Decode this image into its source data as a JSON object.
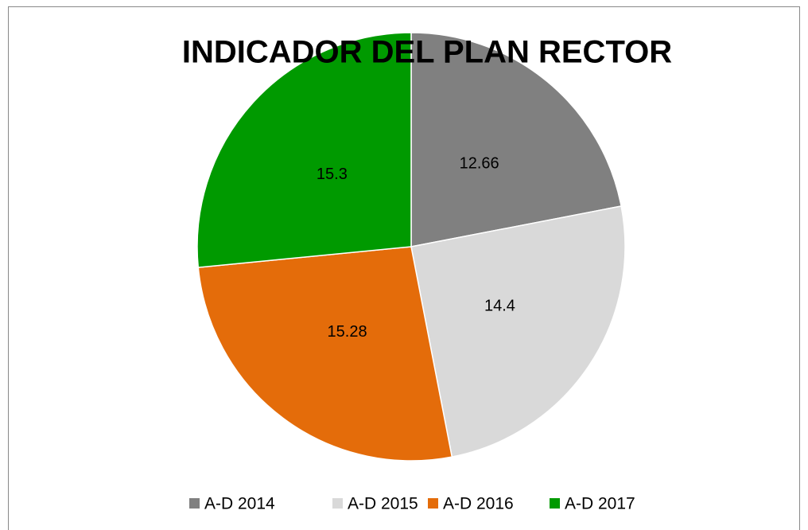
{
  "chart_data": {
    "type": "pie",
    "title": "INDICADOR DEL PLAN RECTOR",
    "categories": [
      "A-D 2014",
      "A-D 2015",
      "A-D 2016",
      "A-D 2017"
    ],
    "values": [
      12.66,
      14.4,
      15.28,
      15.3
    ],
    "colors": [
      "#808080",
      "#d9d9d9",
      "#e46c0a",
      "#009a00"
    ],
    "legend": "bottom"
  }
}
